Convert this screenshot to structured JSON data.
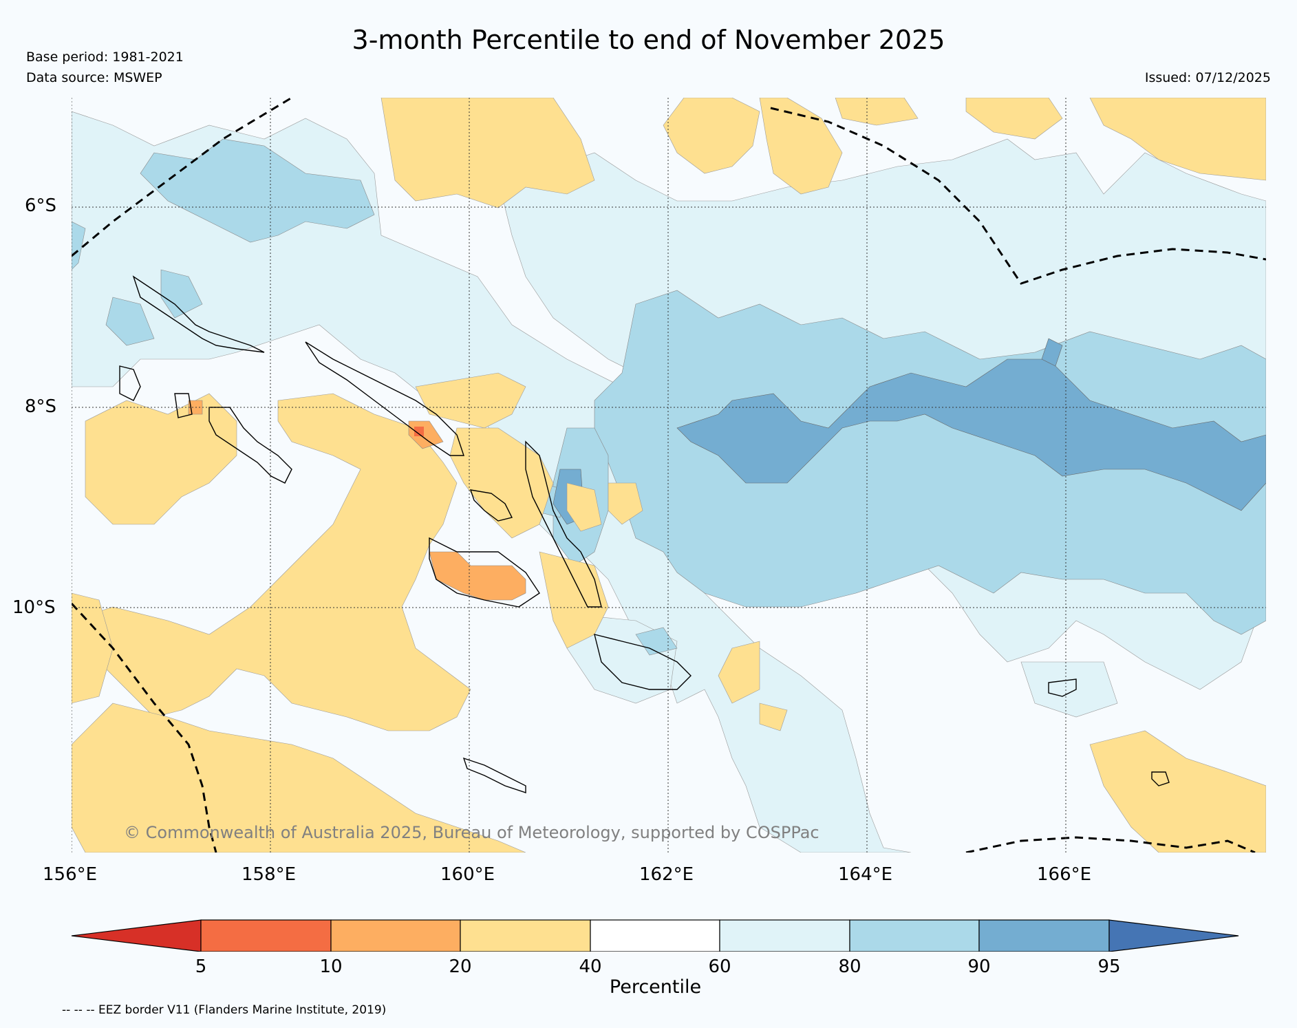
{
  "title": "3-month Percentile to end of November 2025",
  "base_period": "Base period: 1981-2021",
  "data_source": "Data source: MSWEP",
  "issued": "Issued: 07/12/2025",
  "latitude_labels": [
    "6°S",
    "8°S",
    "10°S"
  ],
  "longitude_labels": [
    "156°E",
    "158°E",
    "160°E",
    "162°E",
    "164°E",
    "166°E"
  ],
  "copyright": "© Commonwealth of Australia 2025, Bureau of Meteorology, supported by COSPPac",
  "colorbar": {
    "ticks": [
      "5",
      "10",
      "20",
      "40",
      "60",
      "80",
      "90",
      "95"
    ],
    "label": "Percentile",
    "colors": [
      "#d73027",
      "#f46d43",
      "#fdae61",
      "#fee090",
      "#ffffff",
      "#e0f3f8",
      "#abd9e9",
      "#74add1",
      "#4575b4"
    ]
  },
  "eez_note": "-- -- -- EEZ border V11 (Flanders Marine Institute, 2019)"
}
